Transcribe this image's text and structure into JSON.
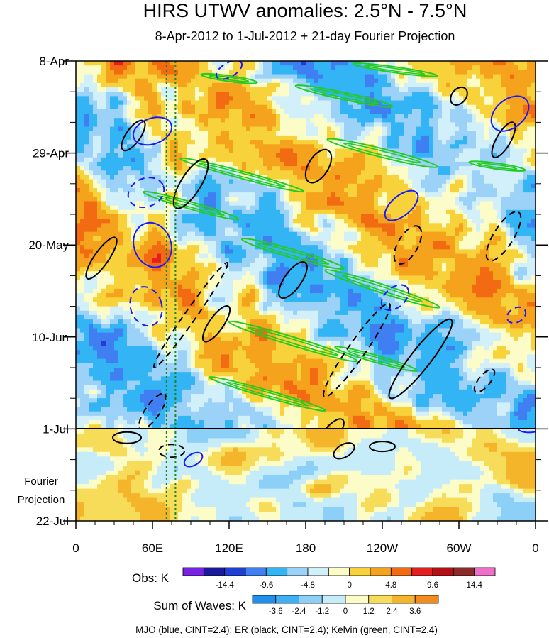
{
  "chart_data": {
    "type": "heatmap",
    "title": "HIRS UTWV anomalies: 2.5°N - 7.5°N",
    "subtitle": "8-Apr-2012 to 1-Jul-2012 + 21-day Fourier Projection",
    "x_ticks": [
      "0",
      "60E",
      "120E",
      "180",
      "120W",
      "60W",
      "0"
    ],
    "x_tick_values": [
      0,
      60,
      120,
      180,
      240,
      300,
      360
    ],
    "xlim": [
      0,
      360
    ],
    "y_ticks": [
      "8-Apr",
      "29-Apr",
      "20-May",
      "10-Jun",
      "1-Jul",
      "22-Jul"
    ],
    "y_tick_days": [
      0,
      21,
      42,
      63,
      84,
      105
    ],
    "ylim_days": [
      0,
      105
    ],
    "projection_start_day": 84,
    "projection_label": [
      "Fourier",
      "Projection"
    ],
    "vertical_dotted_lines_lon": [
      71,
      78
    ],
    "obs_colorbar": {
      "label": "Obs: K",
      "tick_labels": [
        "-14.4",
        "-9.6",
        "-4.8",
        "0",
        "4.8",
        "9.6",
        "14.4"
      ],
      "colors": [
        "#7a22e6",
        "#1a1a9c",
        "#1f3fd6",
        "#3f7ff2",
        "#33b4f5",
        "#9cd2f7",
        "#d2f0fa",
        "#fcfcc8",
        "#f7d23a",
        "#f5a31c",
        "#f26b12",
        "#e31f1f",
        "#b30f14",
        "#8c2a2a",
        "#ee6ec8"
      ]
    },
    "waves_colorbar": {
      "label": "Sum of Waves: K",
      "tick_labels": [
        "-3.6",
        "-2.4",
        "-1.2",
        "0",
        "1.2",
        "2.4",
        "3.6"
      ],
      "colors": [
        "#1f8ff0",
        "#3fb0f5",
        "#8cd0f7",
        "#c6ecf9",
        "#fcfcc8",
        "#f7dc5a",
        "#f5b52a",
        "#f28c1f"
      ]
    },
    "contours": [
      {
        "name": "MJO",
        "color": "#1a1aff",
        "cint": 2.4
      },
      {
        "name": "ER",
        "color": "#000000",
        "cint": 2.4
      },
      {
        "name": "Kelvin",
        "color": "#22cc22",
        "cint": 2.4
      }
    ],
    "footnote": "MJO (blue, CINT=2.4); ER (black, CINT=2.4); Kelvin (green, CINT=2.4)",
    "grid": false
  }
}
